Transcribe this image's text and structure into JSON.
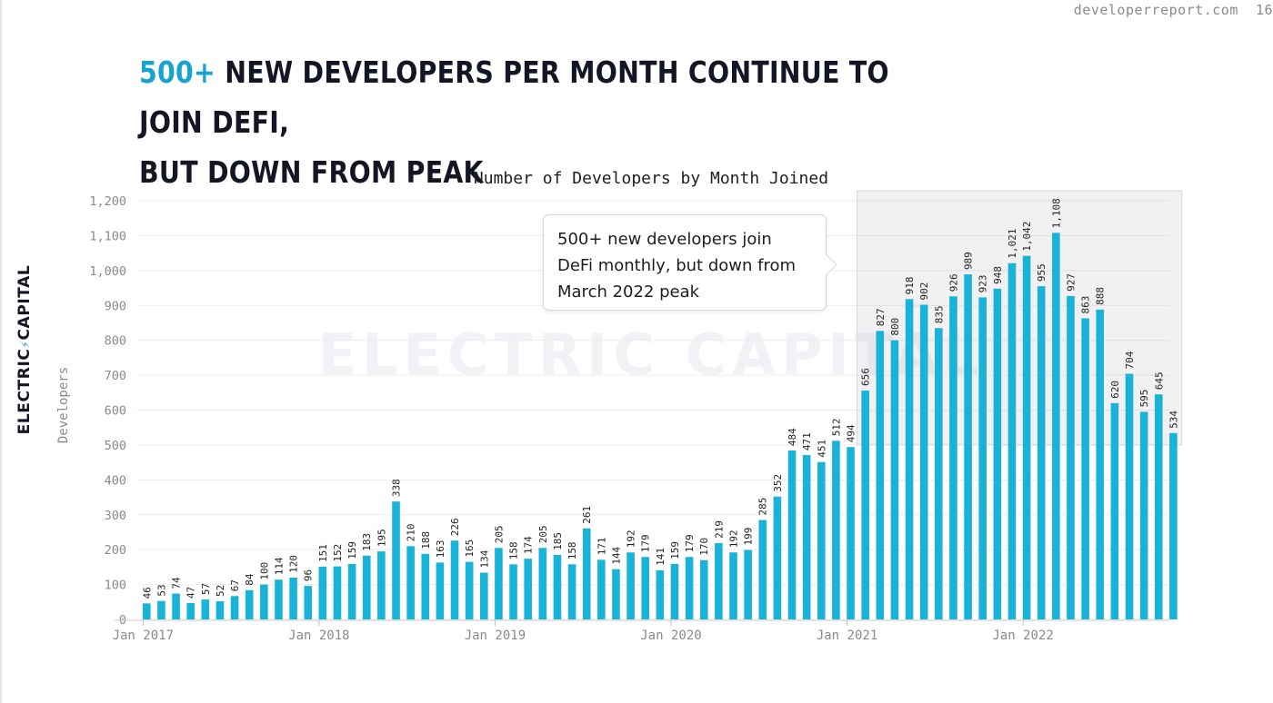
{
  "site": {
    "url": "developerreport.com",
    "page_number": "16"
  },
  "headline": {
    "accent": "500+",
    "rest": " NEW DEVELOPERS PER MONTH CONTINUE TO JOIN DEFI,",
    "line2": "BUT DOWN FROM PEAK"
  },
  "brand": {
    "name": "ELECTRIC",
    "name2": "CAPITAL",
    "glyph": "⚡"
  },
  "callout": {
    "lines": [
      "500+ new developers join",
      "DeFi monthly, but down from",
      "March 2022 peak"
    ]
  },
  "colors": {
    "bar": "#19b3d8",
    "accent": "#17a3cf",
    "highlight": "#a7a7b8",
    "text": "#141625"
  },
  "chart_data": {
    "type": "bar",
    "title": "Number of Developers by Month Joined",
    "ylabel": "Developers",
    "xlabel": "",
    "ylim": [
      0,
      1200
    ],
    "yticks": [
      0,
      100,
      200,
      300,
      400,
      500,
      600,
      700,
      800,
      900,
      1000,
      1100,
      1200
    ],
    "ytick_labels": [
      "0",
      "100",
      "200",
      "300",
      "400",
      "500",
      "600",
      "700",
      "800",
      "900",
      "1,000",
      "1,100",
      "1,200"
    ],
    "start": "2017-01",
    "xticks": [
      {
        "index": 0,
        "label": "Jan 2017"
      },
      {
        "index": 12,
        "label": "Jan 2018"
      },
      {
        "index": 24,
        "label": "Jan 2019"
      },
      {
        "index": 36,
        "label": "Jan 2020"
      },
      {
        "index": 48,
        "label": "Jan 2021"
      },
      {
        "index": 60,
        "label": "Jan 2022"
      }
    ],
    "values": [
      46,
      53,
      74,
      47,
      57,
      52,
      67,
      84,
      100,
      114,
      120,
      96,
      151,
      152,
      159,
      183,
      195,
      338,
      210,
      188,
      163,
      226,
      165,
      134,
      205,
      158,
      174,
      205,
      185,
      158,
      261,
      171,
      144,
      192,
      179,
      141,
      159,
      179,
      170,
      219,
      192,
      199,
      285,
      352,
      484,
      471,
      451,
      512,
      494,
      656,
      827,
      800,
      918,
      902,
      835,
      926,
      989,
      923,
      948,
      1021,
      1042,
      955,
      1108,
      927,
      863,
      888,
      620,
      704,
      595,
      645,
      534
    ],
    "labels": [
      "46",
      "53",
      "74",
      "47",
      "57",
      "52",
      "67",
      "84",
      "100",
      "114",
      "120",
      "96",
      "151",
      "152",
      "159",
      "183",
      "195",
      "338",
      "210",
      "188",
      "163",
      "226",
      "165",
      "134",
      "205",
      "158",
      "174",
      "205",
      "185",
      "158",
      "261",
      "171",
      "144",
      "192",
      "179",
      "141",
      "159",
      "179",
      "170",
      "219",
      "192",
      "199",
      "285",
      "352",
      "484",
      "471",
      "451",
      "512",
      "494",
      "656",
      "827",
      "800",
      "918",
      "902",
      "835",
      "926",
      "989",
      "923",
      "948",
      "1,021",
      "1,042",
      "955",
      "1,108",
      "927",
      "863",
      "888",
      "620",
      "704",
      "595",
      "645",
      "534"
    ],
    "highlight_region": {
      "from_index": 49,
      "to_index": 70,
      "y_from": 500,
      "y_to": 1200
    },
    "grid": true,
    "legend": "none"
  }
}
